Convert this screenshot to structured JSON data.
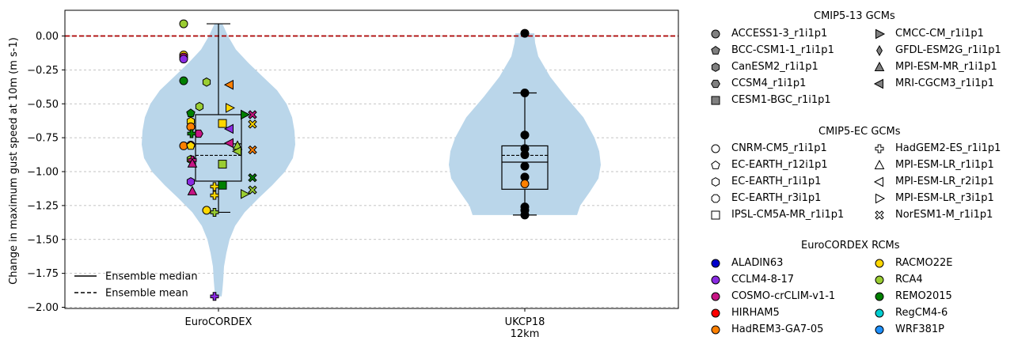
{
  "chart_data": {
    "type": "violin",
    "ylabel": "Change in maximum gust speed at 10m (m s-1)",
    "ylim": [
      -2.02,
      0.19
    ],
    "yticks": [
      0.0,
      -0.25,
      -0.5,
      -0.75,
      -1.0,
      -1.25,
      -1.5,
      -1.75,
      -2.0
    ],
    "ytick_labels": [
      "0.00",
      "−0.25",
      "−0.50",
      "−0.75",
      "−1.00",
      "−1.25",
      "−1.50",
      "−1.75",
      "−2.00"
    ],
    "grid": "y, dashed",
    "reference_line": {
      "y": 0.0,
      "color": "#aa0000",
      "style": "dashed"
    },
    "colors": {
      "violin": "#bad6ea"
    },
    "categories": [
      {
        "label_lines": [
          "EuroCORDEX"
        ]
      },
      {
        "label_lines": [
          "UKCP18",
          "12km"
        ]
      }
    ],
    "legend_lines": [
      {
        "label": "Ensemble median",
        "style": "solid"
      },
      {
        "label": "Ensemble mean",
        "style": "dashed"
      }
    ],
    "groups": [
      {
        "name": "EuroCORDEX",
        "violin_range": [
          -1.92,
          0.09
        ],
        "box": {
          "q1": -1.07,
          "median": -0.795,
          "mean": -0.88,
          "q3": -0.58,
          "whisker_low": -1.3,
          "whisker_high": 0.09
        },
        "points": [
          {
            "gcm": "CNRM-CM5_r1i1p1",
            "rcm": "RCA4",
            "value": 0.09
          },
          {
            "gcm": "ACCESS1-3_r1i1p1",
            "rcm": "RACMO22E",
            "value": -0.14
          },
          {
            "gcm": "ACCESS1-3_r1i1p1",
            "rcm": "COSMO-crCLIM-v1-1",
            "value": -0.155
          },
          {
            "gcm": "ACCESS1-3_r1i1p1",
            "rcm": "CCLM4-8-17",
            "value": -0.17
          },
          {
            "gcm": "CNRM-CM5_r1i1p1",
            "rcm": "REMO2015",
            "value": -0.33
          },
          {
            "gcm": "CanESM2_r1i1p1",
            "rcm": "RCA4",
            "value": -0.34
          },
          {
            "gcm": "MRI-CGCM3_r1i1p1",
            "rcm": "HadREM3-GA7-05",
            "value": -0.36
          },
          {
            "gcm": "CanESM2_r1i1p1",
            "rcm": "RCA4",
            "value": -0.52
          },
          {
            "gcm": "MPI-ESM-LR_r3i1p1",
            "rcm": "RACMO22E",
            "value": -0.53
          },
          {
            "gcm": "BCC-CSM1-1_r1i1p1",
            "rcm": "REMO2015",
            "value": -0.57
          },
          {
            "gcm": "CMCC-CM_r1i1p1",
            "rcm": "REMO2015",
            "value": -0.58
          },
          {
            "gcm": "NorESM1-M_r1i1p1",
            "rcm": "COSMO-crCLIM-v1-1",
            "value": -0.58
          },
          {
            "gcm": "EC-EARTH_r1i1p1",
            "rcm": "RACMO22E",
            "value": -0.63
          },
          {
            "gcm": "IPSL-CM5A-MR_r1i1p1",
            "rcm": "RACMO22E",
            "value": -0.645
          },
          {
            "gcm": "NorESM1-M_r1i1p1",
            "rcm": "RACMO22E",
            "value": -0.65
          },
          {
            "gcm": "CNRM-CM5_r1i1p1",
            "rcm": "HadREM3-GA7-05",
            "value": -0.67
          },
          {
            "gcm": "MRI-CGCM3_r1i1p1",
            "rcm": "CCLM4-8-17",
            "value": -0.685
          },
          {
            "gcm": "CCSM4_r1i1p1",
            "rcm": "COSMO-crCLIM-v1-1",
            "value": -0.72
          },
          {
            "gcm": "HadGEM2-ES_r1i1p1",
            "rcm": "REMO2015",
            "value": -0.72
          },
          {
            "gcm": "MPI-ESM-LR_r2i1p1",
            "rcm": "COSMO-crCLIM-v1-1",
            "value": -0.79
          },
          {
            "gcm": "CNRM-CM5_r1i1p1",
            "rcm": "HadREM3-GA7-05",
            "value": -0.81
          },
          {
            "gcm": "CNRM-CM5_r1i1p1",
            "rcm": "COSMO-crCLIM-v1-1",
            "value": -0.805
          },
          {
            "gcm": "EC-EARTH_r12i1p1",
            "rcm": "RACMO22E",
            "value": -0.81
          },
          {
            "gcm": "MPI-ESM-MR_r1i1p1",
            "rcm": "RCA4",
            "value": -0.81
          },
          {
            "gcm": "NorESM1-M_r1i1p1",
            "rcm": "HadREM3-GA7-05",
            "value": -0.84
          },
          {
            "gcm": "MRI-CGCM3_r1i1p1",
            "rcm": "RCA4",
            "value": -0.85
          },
          {
            "gcm": "CanESM2_r1i1p1",
            "rcm": "RCA4",
            "value": -0.91
          },
          {
            "gcm": "HadGEM2-ES_r1i1p1",
            "rcm": "COSMO-crCLIM-v1-1",
            "value": -0.915
          },
          {
            "gcm": "MPI-ESM-LR_r1i1p1",
            "rcm": "COSMO-crCLIM-v1-1",
            "value": -0.94
          },
          {
            "gcm": "CESM1-BGC_r1i1p1",
            "rcm": "RCA4",
            "value": -0.945
          },
          {
            "gcm": "NorESM1-M_r1i1p1",
            "rcm": "REMO2015",
            "value": -1.045
          },
          {
            "gcm": "CanESM2_r1i1p1",
            "rcm": "CCLM4-8-17",
            "value": -1.075
          },
          {
            "gcm": "CESM1-BGC_r1i1p1",
            "rcm": "REMO2015",
            "value": -1.1
          },
          {
            "gcm": "HadGEM2-ES_r1i1p1",
            "rcm": "RACMO22E",
            "value": -1.11
          },
          {
            "gcm": "NorESM1-M_r1i1p1",
            "rcm": "RCA4",
            "value": -1.135
          },
          {
            "gcm": "MPI-ESM-LR_r1i1p1",
            "rcm": "COSMO-crCLIM-v1-1",
            "value": -1.145
          },
          {
            "gcm": "MPI-ESM-LR_r3i1p1",
            "rcm": "RCA4",
            "value": -1.165
          },
          {
            "gcm": "HadGEM2-ES_r1i1p1",
            "rcm": "RACMO22E",
            "value": -1.175
          },
          {
            "gcm": "CNRM-CM5_r1i1p1",
            "rcm": "RACMO22E",
            "value": -1.285
          },
          {
            "gcm": "HadGEM2-ES_r1i1p1",
            "rcm": "RCA4",
            "value": -1.3
          },
          {
            "gcm": "HadGEM2-ES_r1i1p1",
            "rcm": "CCLM4-8-17",
            "value": -1.92
          }
        ]
      },
      {
        "name": "UKCP18 12km",
        "violin_range": [
          -1.32,
          0.02
        ],
        "box": {
          "q1": -1.13,
          "median": -0.93,
          "mean": -0.88,
          "q3": -0.81,
          "whisker_low": -1.32,
          "whisker_high": -0.42
        },
        "points": [
          {
            "color": "#000000",
            "value": 0.02
          },
          {
            "color": "#000000",
            "value": -0.42
          },
          {
            "color": "#000000",
            "value": -0.73
          },
          {
            "color": "#000000",
            "value": -0.83
          },
          {
            "color": "#000000",
            "value": -0.875
          },
          {
            "color": "#000000",
            "value": -0.96
          },
          {
            "color": "#000000",
            "value": -1.04
          },
          {
            "color": "#ff8000",
            "value": -1.09
          },
          {
            "color": "#000000",
            "value": -1.26
          },
          {
            "color": "#000000",
            "value": -1.285
          },
          {
            "color": "#000000",
            "value": -1.32
          }
        ]
      }
    ]
  },
  "legend": {
    "gcm_cmip5_13": {
      "title": "CMIP5-13 GCMs",
      "col1": [
        {
          "label": "ACCESS1-3_r1i1p1",
          "marker": "circle"
        },
        {
          "label": "BCC-CSM1-1_r1i1p1",
          "marker": "pentagon"
        },
        {
          "label": "CanESM2_r1i1p1",
          "marker": "hexagon"
        },
        {
          "label": "CCSM4_r1i1p1",
          "marker": "hexagon2"
        },
        {
          "label": "CESM1-BGC_r1i1p1",
          "marker": "square"
        }
      ],
      "col2": [
        {
          "label": "CMCC-CM_r1i1p1",
          "marker": "tri-right"
        },
        {
          "label": "GFDL-ESM2G_r1i1p1",
          "marker": "thin-diamond"
        },
        {
          "label": "MPI-ESM-MR_r1i1p1",
          "marker": "tri-up"
        },
        {
          "label": "MRI-CGCM3_r1i1p1",
          "marker": "tri-left"
        }
      ]
    },
    "gcm_cmip5_ec": {
      "title": "CMIP5-EC GCMs",
      "col1": [
        {
          "label": "CNRM-CM5_r1i1p1",
          "marker": "circle"
        },
        {
          "label": "EC-EARTH_r12i1p1",
          "marker": "pentagon"
        },
        {
          "label": "EC-EARTH_r1i1p1",
          "marker": "hexagon"
        },
        {
          "label": "EC-EARTH_r3i1p1",
          "marker": "octagon"
        },
        {
          "label": "IPSL-CM5A-MR_r1i1p1",
          "marker": "square"
        }
      ],
      "col2": [
        {
          "label": "HadGEM2-ES_r1i1p1",
          "marker": "plus"
        },
        {
          "label": "MPI-ESM-LR_r1i1p1",
          "marker": "tri-up"
        },
        {
          "label": "MPI-ESM-LR_r2i1p1",
          "marker": "tri-left"
        },
        {
          "label": "MPI-ESM-LR_r3i1p1",
          "marker": "tri-right"
        },
        {
          "label": "NorESM1-M_r1i1p1",
          "marker": "x"
        }
      ]
    },
    "rcm": {
      "title": "EuroCORDEX RCMs",
      "col1": [
        {
          "label": "ALADIN63",
          "color": "#0000cc"
        },
        {
          "label": "CCLM4-8-17",
          "color": "#8a2be2"
        },
        {
          "label": "COSMO-crCLIM-v1-1",
          "color": "#c71585"
        },
        {
          "label": "HIRHAM5",
          "color": "#ff0000"
        },
        {
          "label": "HadREM3-GA7-05",
          "color": "#ff8000"
        }
      ],
      "col2": [
        {
          "label": "RACMO22E",
          "color": "#ffd700"
        },
        {
          "label": "RCA4",
          "color": "#9acd32"
        },
        {
          "label": "REMO2015",
          "color": "#008000"
        },
        {
          "label": "RegCM4-6",
          "color": "#00ced1"
        },
        {
          "label": "WRF381P",
          "color": "#1e90ff"
        }
      ]
    }
  }
}
